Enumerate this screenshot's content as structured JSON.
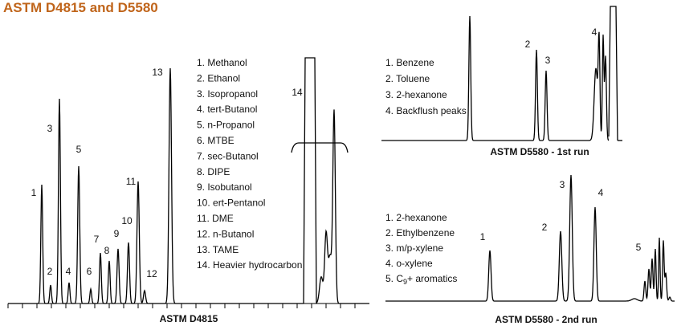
{
  "title": "ASTM D4815 and D5580",
  "panels": [
    {
      "caption": "ASTM D4815",
      "peak_labels": [
        "1",
        "2",
        "3",
        "4",
        "5",
        "6",
        "7",
        "8",
        "9",
        "10",
        "11",
        "12",
        "13",
        "14"
      ],
      "legend": [
        "1. Methanol",
        "2. Ethanol",
        "3. Isopropanol",
        "4. tert-Butanol",
        "5. n-Propanol",
        "6. MTBE",
        "7. sec-Butanol",
        "8. DIPE",
        "9. Isobutanol",
        "10. ert-Pentanol",
        "11. DME",
        "12. n-Butanol",
        "13. TAME",
        "14. Heavier hydrocarbon"
      ]
    },
    {
      "caption": "ASTM D5580 - 1st run",
      "peak_labels": [
        "2",
        "3",
        "4"
      ],
      "legend": [
        "1. Benzene",
        "2. Toluene",
        "3. 2-hexanone",
        "4. Backflush peaks"
      ]
    },
    {
      "caption": "ASTM D5580 - 2nd run",
      "peak_labels": [
        "1",
        "2",
        "3",
        "4",
        "5"
      ],
      "legend": [
        "1. 2-hexanone",
        "2. Ethylbenzene",
        "3. m/p-xylene",
        "4. o-xylene",
        {
          "prefix": "5. C",
          "sub": "9",
          "suffix": "+ aromatics"
        }
      ]
    }
  ]
}
